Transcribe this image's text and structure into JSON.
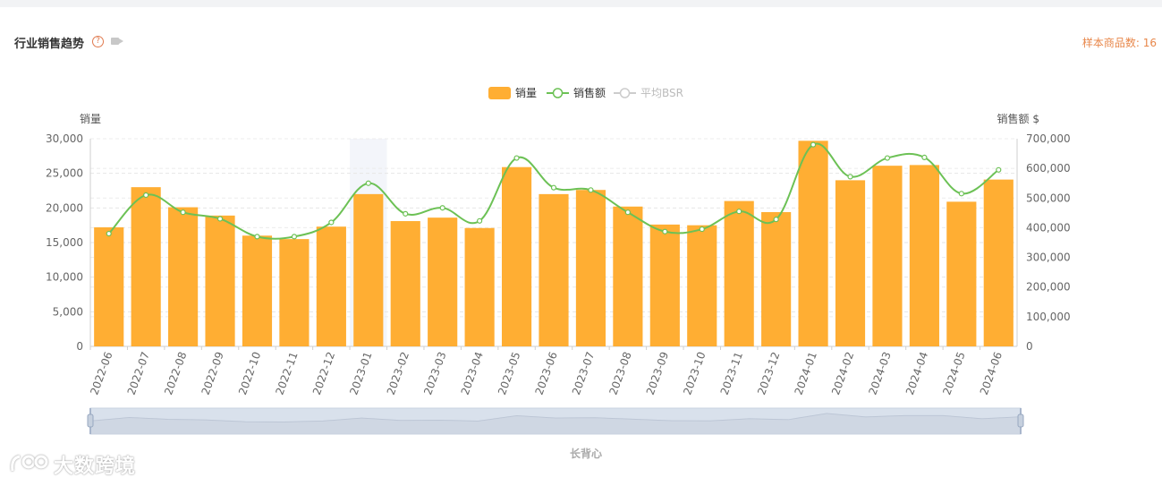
{
  "header": {
    "title": "行业销售趋势",
    "help_symbol": "?",
    "sample_label": "样本商品数: 16"
  },
  "watermark": {
    "text": "大数跨境",
    "logo_name": "logo-icon"
  },
  "slider": {
    "label": "长背心"
  },
  "colors": {
    "bar": "#ffae33",
    "line": "#6cc155",
    "bsr": "#cccccc",
    "slider_fill": "#d9e1ec"
  },
  "chart_data": {
    "type": "bar",
    "legend": [
      {
        "name": "销量",
        "kind": "bar"
      },
      {
        "name": "销售额",
        "kind": "line"
      },
      {
        "name": "平均BSR",
        "kind": "line",
        "disabled": true
      }
    ],
    "legend_placement": "top-center",
    "ylabel_left": "销量",
    "ylabel_right": "销售额 $",
    "ylim_left": [
      0,
      30000
    ],
    "ylim_right": [
      0,
      700000
    ],
    "yticks_left": [
      "0",
      "5,000",
      "10,000",
      "15,000",
      "20,000",
      "25,000",
      "30,000"
    ],
    "yticks_right": [
      "0",
      "100,000",
      "200,000",
      "300,000",
      "400,000",
      "500,000",
      "600,000",
      "700,000"
    ],
    "grid": true,
    "highlighted_category": "2023-01",
    "categories": [
      "2022-06",
      "2022-07",
      "2022-08",
      "2022-09",
      "2022-10",
      "2022-11",
      "2022-12",
      "2023-01",
      "2023-02",
      "2023-03",
      "2023-04",
      "2023-05",
      "2023-06",
      "2023-07",
      "2023-08",
      "2023-09",
      "2023-10",
      "2023-11",
      "2023-12",
      "2024-01",
      "2024-02",
      "2024-03",
      "2024-04",
      "2024-05",
      "2024-06"
    ],
    "series": [
      {
        "name": "销量",
        "type": "bar",
        "axis": "left",
        "values": [
          17200,
          23000,
          20100,
          18900,
          16000,
          15500,
          17300,
          22000,
          18100,
          18600,
          17100,
          25900,
          22000,
          22600,
          20200,
          17600,
          17500,
          21000,
          19400,
          29700,
          24000,
          26100,
          26200,
          20900,
          24100
        ]
      },
      {
        "name": "销售额",
        "type": "line",
        "axis": "right",
        "values": [
          380000,
          510000,
          452000,
          430000,
          370000,
          370000,
          418000,
          550000,
          447000,
          467000,
          423000,
          635000,
          535000,
          527000,
          452000,
          387000,
          395000,
          455000,
          428000,
          680000,
          572000,
          635000,
          637000,
          515000,
          595000
        ]
      }
    ]
  }
}
